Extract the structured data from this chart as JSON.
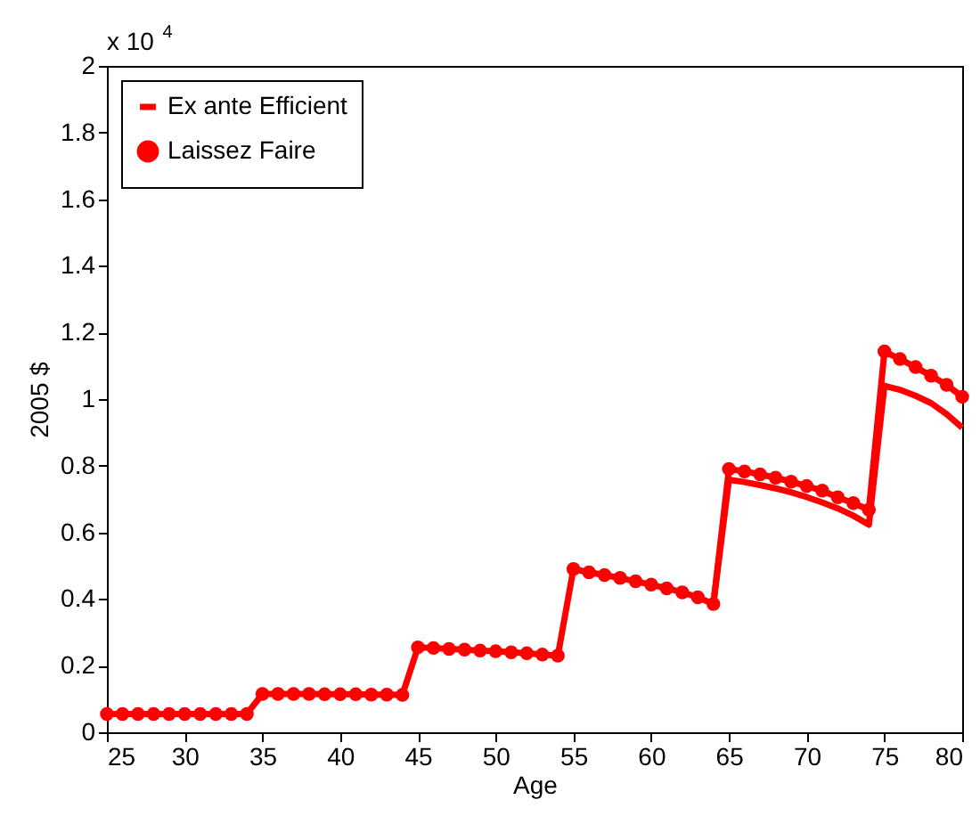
{
  "chart_data": {
    "type": "line",
    "xlabel": "Age",
    "ylabel": "2005 $",
    "annotations": [
      "x 10$^{4}$"
    ],
    "x": [
      25,
      26,
      27,
      28,
      29,
      30,
      31,
      32,
      33,
      34,
      35,
      36,
      37,
      38,
      39,
      40,
      41,
      42,
      43,
      44,
      45,
      46,
      47,
      48,
      49,
      50,
      51,
      52,
      53,
      54,
      55,
      56,
      57,
      58,
      59,
      60,
      61,
      62,
      63,
      64,
      65,
      66,
      67,
      68,
      69,
      70,
      71,
      72,
      73,
      74,
      75,
      76,
      77,
      78,
      79,
      80
    ],
    "series": [
      {
        "name": "Ex ante Efficient",
        "color": "#ff0000",
        "marker": "none",
        "values": [
          null,
          null,
          null,
          null,
          null,
          null,
          null,
          null,
          null,
          null,
          null,
          null,
          null,
          null,
          null,
          null,
          null,
          null,
          null,
          null,
          null,
          null,
          null,
          null,
          null,
          null,
          null,
          null,
          null,
          null,
          null,
          null,
          null,
          null,
          null,
          null,
          null,
          null,
          null,
          0.385,
          0.758,
          0.751,
          0.742,
          0.732,
          0.72,
          0.706,
          0.69,
          0.672,
          0.65,
          0.623,
          1.04,
          1.028,
          1.01,
          0.988,
          0.955,
          0.914
        ]
      },
      {
        "name": "Laissez Faire",
        "color": "#ff0000",
        "marker": "circle",
        "values": [
          0.055,
          0.055,
          0.055,
          0.055,
          0.055,
          0.055,
          0.055,
          0.055,
          0.055,
          0.055,
          0.115,
          0.115,
          0.115,
          0.115,
          0.114,
          0.114,
          0.114,
          0.113,
          0.113,
          0.112,
          0.255,
          0.253,
          0.25,
          0.248,
          0.245,
          0.243,
          0.24,
          0.237,
          0.233,
          0.23,
          0.49,
          0.48,
          0.472,
          0.463,
          0.453,
          0.443,
          0.432,
          0.42,
          0.405,
          0.385,
          0.79,
          0.783,
          0.774,
          0.764,
          0.752,
          0.739,
          0.725,
          0.705,
          0.688,
          0.668,
          1.143,
          1.12,
          1.096,
          1.07,
          1.043,
          1.007
        ]
      }
    ],
    "xlim": [
      25,
      80
    ],
    "xticks": [
      25,
      30,
      35,
      40,
      45,
      50,
      55,
      60,
      65,
      70,
      75,
      80
    ],
    "ylim": [
      0,
      2
    ],
    "yticks": [
      0,
      0.2,
      0.4,
      0.6,
      0.8,
      1,
      1.2,
      1.4,
      1.6,
      1.8,
      2
    ],
    "grid": false,
    "legend": "top left",
    "line_style": "solid"
  }
}
